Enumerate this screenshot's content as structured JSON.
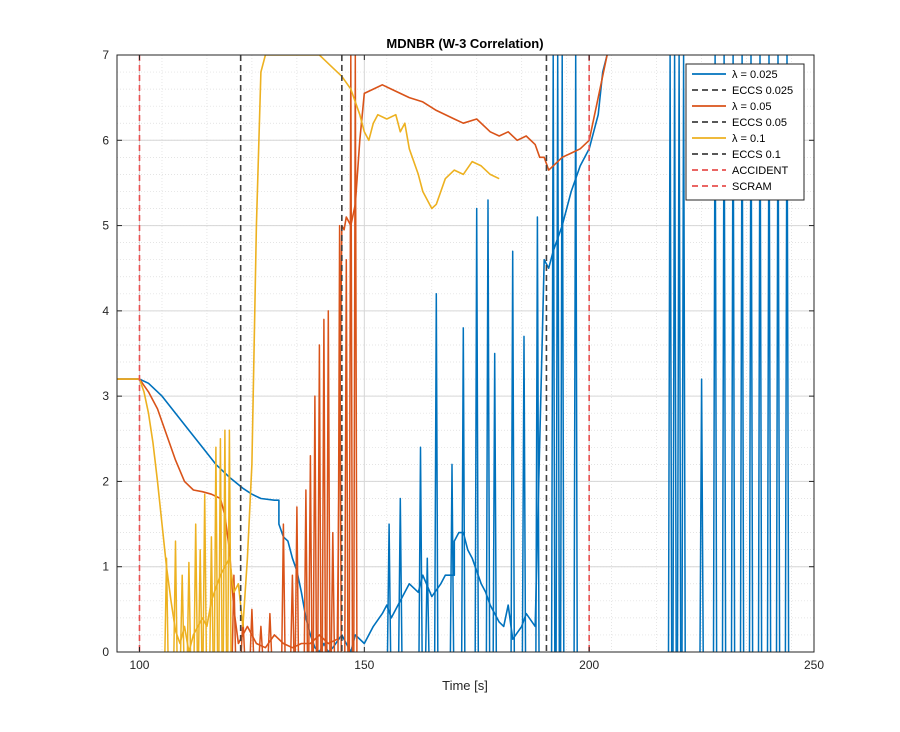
{
  "chart_data": {
    "type": "line",
    "title": "MDNBR (W-3 Correlation)",
    "xlabel": "Time [s]",
    "ylabel": "",
    "xlim": [
      95,
      250
    ],
    "ylim": [
      0,
      7
    ],
    "xticks": [
      100,
      150,
      200,
      250
    ],
    "yticks": [
      0,
      1,
      2,
      3,
      4,
      5,
      6,
      7
    ],
    "grid": "on (solid major, dotted minor)",
    "legend_position": "top-right",
    "series": [
      {
        "name": "λ = 0.025",
        "color": "#0072BD",
        "style": "solid",
        "points": [
          [
            95,
            3.2
          ],
          [
            100,
            3.2
          ],
          [
            102,
            3.15
          ],
          [
            105,
            3.0
          ],
          [
            108,
            2.8
          ],
          [
            111,
            2.6
          ],
          [
            114,
            2.4
          ],
          [
            117,
            2.2
          ],
          [
            120,
            2.05
          ],
          [
            123,
            1.92
          ],
          [
            125,
            1.85
          ],
          [
            127,
            1.8
          ],
          [
            130,
            1.78
          ],
          [
            131,
            1.78
          ],
          [
            131,
            1.5
          ],
          [
            132,
            1.35
          ],
          [
            133,
            1.3
          ],
          [
            134,
            1.1
          ],
          [
            135,
            0.95
          ],
          [
            136,
            0.7
          ],
          [
            137,
            0.4
          ],
          [
            138,
            0.2
          ],
          [
            139,
            0.05
          ],
          [
            140,
            0.0
          ],
          [
            141,
            0.1
          ],
          [
            142,
            0.0
          ],
          [
            143,
            0.05
          ],
          [
            145,
            0.2
          ],
          [
            146,
            0.1
          ],
          [
            147,
            0.0
          ],
          [
            148,
            0.2
          ],
          [
            150,
            0.1
          ],
          [
            152,
            0.3
          ],
          [
            154,
            0.45
          ],
          [
            155,
            0.55
          ],
          [
            156,
            0.4
          ],
          [
            158,
            0.6
          ],
          [
            160,
            0.8
          ],
          [
            162,
            0.7
          ],
          [
            163,
            0.9
          ],
          [
            165,
            0.65
          ],
          [
            167,
            0.8
          ],
          [
            168,
            0.9
          ],
          [
            170,
            0.9
          ],
          [
            170,
            1.3
          ],
          [
            171,
            1.4
          ],
          [
            172,
            1.4
          ],
          [
            173,
            1.2
          ],
          [
            174,
            1.1
          ],
          [
            175,
            0.95
          ],
          [
            176,
            0.8
          ],
          [
            177,
            0.7
          ],
          [
            178,
            0.55
          ],
          [
            180,
            0.35
          ],
          [
            181,
            0.3
          ],
          [
            182,
            0.55
          ],
          [
            183,
            0.15
          ],
          [
            185,
            0.3
          ],
          [
            186,
            0.45
          ],
          [
            188,
            0.3
          ],
          [
            190,
            4.6
          ],
          [
            191,
            4.5
          ],
          [
            192,
            4.7
          ],
          [
            194,
            5.0
          ],
          [
            196,
            5.4
          ],
          [
            198,
            5.7
          ],
          [
            200,
            5.9
          ],
          [
            202,
            6.3
          ],
          [
            203,
            6.8
          ],
          [
            204,
            7.0
          ]
        ],
        "spikes": [
          {
            "x": 155.5,
            "y": 1.5
          },
          {
            "x": 158,
            "y": 1.8
          },
          {
            "x": 162.5,
            "y": 2.4
          },
          {
            "x": 164,
            "y": 1.1
          },
          {
            "x": 166,
            "y": 4.2
          },
          {
            "x": 169.5,
            "y": 2.2
          },
          {
            "x": 172,
            "y": 3.8
          },
          {
            "x": 175,
            "y": 5.2
          },
          {
            "x": 177.5,
            "y": 5.3
          },
          {
            "x": 179,
            "y": 3.5
          },
          {
            "x": 183,
            "y": 4.7
          },
          {
            "x": 185.5,
            "y": 3.7
          },
          {
            "x": 188.5,
            "y": 5.1
          },
          {
            "x": 192,
            "y": 7.0
          },
          {
            "x": 193,
            "y": 7.0
          },
          {
            "x": 194,
            "y": 7.0
          },
          {
            "x": 197,
            "y": 7.0
          },
          {
            "x": 218,
            "y": 7.0
          },
          {
            "x": 219,
            "y": 7.0
          },
          {
            "x": 220,
            "y": 7.0
          },
          {
            "x": 221,
            "y": 7.0
          },
          {
            "x": 225,
            "y": 3.2
          },
          {
            "x": 228,
            "y": 7.0
          },
          {
            "x": 230,
            "y": 7.0
          },
          {
            "x": 232,
            "y": 7.0
          },
          {
            "x": 234,
            "y": 7.0
          },
          {
            "x": 236,
            "y": 7.0
          },
          {
            "x": 238,
            "y": 7.0
          },
          {
            "x": 240,
            "y": 7.0
          },
          {
            "x": 242,
            "y": 7.0
          },
          {
            "x": 244,
            "y": 7.0
          }
        ]
      },
      {
        "name": "ECCS 0.025",
        "color": "#404040",
        "style": "dashed",
        "x": 122.5
      },
      {
        "name": "λ = 0.05",
        "color": "#D95319",
        "style": "solid",
        "points": [
          [
            95,
            3.2
          ],
          [
            100,
            3.2
          ],
          [
            102,
            3.05
          ],
          [
            104,
            2.85
          ],
          [
            106,
            2.55
          ],
          [
            108,
            2.25
          ],
          [
            110,
            2.0
          ],
          [
            112,
            1.9
          ],
          [
            114,
            1.88
          ],
          [
            116,
            1.85
          ],
          [
            118,
            1.8
          ],
          [
            119,
            1.6
          ],
          [
            120,
            1.2
          ],
          [
            121,
            0.5
          ],
          [
            122,
            0.1
          ],
          [
            124,
            0.3
          ],
          [
            126,
            0.1
          ],
          [
            128,
            0.05
          ],
          [
            130,
            0.2
          ],
          [
            132,
            0.1
          ],
          [
            134,
            0.05
          ],
          [
            136,
            0.1
          ],
          [
            138,
            0.1
          ],
          [
            140,
            0.2
          ],
          [
            142,
            0.1
          ],
          [
            144,
            0.15
          ],
          [
            145,
            5.0
          ],
          [
            145.5,
            4.95
          ],
          [
            146,
            5.1
          ],
          [
            147,
            5.0
          ],
          [
            148,
            5.25
          ],
          [
            149,
            6.0
          ],
          [
            150,
            6.55
          ],
          [
            152,
            6.6
          ],
          [
            154,
            6.65
          ],
          [
            156,
            6.6
          ],
          [
            158,
            6.55
          ],
          [
            160,
            6.5
          ],
          [
            163,
            6.45
          ],
          [
            166,
            6.35
          ],
          [
            170,
            6.25
          ],
          [
            172,
            6.2
          ],
          [
            175,
            6.25
          ],
          [
            178,
            6.1
          ],
          [
            180,
            6.05
          ],
          [
            182,
            6.1
          ],
          [
            184,
            6.0
          ],
          [
            186,
            6.05
          ],
          [
            188,
            5.95
          ],
          [
            189,
            5.8
          ],
          [
            190,
            5.8
          ],
          [
            191,
            5.65
          ],
          [
            192,
            5.7
          ],
          [
            194,
            5.8
          ],
          [
            196,
            5.85
          ],
          [
            198,
            5.9
          ],
          [
            200,
            6.0
          ],
          [
            202,
            6.5
          ],
          [
            204,
            7.0
          ]
        ],
        "spikes": [
          {
            "x": 121,
            "y": 0.9
          },
          {
            "x": 123,
            "y": 0.4
          },
          {
            "x": 125,
            "y": 0.5
          },
          {
            "x": 127,
            "y": 0.3
          },
          {
            "x": 129,
            "y": 0.45
          },
          {
            "x": 132,
            "y": 1.5
          },
          {
            "x": 134,
            "y": 0.9
          },
          {
            "x": 135,
            "y": 1.7
          },
          {
            "x": 137,
            "y": 1.9
          },
          {
            "x": 138,
            "y": 2.3
          },
          {
            "x": 139,
            "y": 3.0
          },
          {
            "x": 140,
            "y": 3.6
          },
          {
            "x": 141,
            "y": 3.9
          },
          {
            "x": 142,
            "y": 4.0
          },
          {
            "x": 143,
            "y": 1.4
          },
          {
            "x": 144.5,
            "y": 5.0
          },
          {
            "x": 146,
            "y": 4.6
          },
          {
            "x": 147,
            "y": 7.0
          },
          {
            "x": 148,
            "y": 7.0
          }
        ]
      },
      {
        "name": "ECCS 0.05",
        "color": "#404040",
        "style": "dashed",
        "x": 145
      },
      {
        "name": "λ = 0.1",
        "color": "#EDB120",
        "style": "solid",
        "points": [
          [
            95,
            3.2
          ],
          [
            100,
            3.2
          ],
          [
            101,
            3.05
          ],
          [
            102,
            2.8
          ],
          [
            103,
            2.45
          ],
          [
            104,
            2.0
          ],
          [
            105,
            1.5
          ],
          [
            106,
            1.0
          ],
          [
            107,
            0.6
          ],
          [
            108,
            0.25
          ],
          [
            109,
            0.1
          ],
          [
            110,
            0.3
          ],
          [
            111,
            0.0
          ],
          [
            112,
            0.2
          ],
          [
            114,
            0.4
          ],
          [
            115,
            0.3
          ],
          [
            116,
            0.6
          ],
          [
            118,
            0.9
          ],
          [
            120,
            1.1
          ],
          [
            121,
            0.7
          ],
          [
            122,
            0.8
          ],
          [
            123,
            0.3
          ],
          [
            124,
            1.1
          ],
          [
            125,
            2.2
          ],
          [
            126,
            5.0
          ],
          [
            127,
            6.8
          ],
          [
            128,
            7.0
          ],
          [
            130,
            7.0
          ],
          [
            140,
            7.0
          ],
          [
            141,
            6.95
          ],
          [
            143,
            6.85
          ],
          [
            145,
            6.75
          ],
          [
            147,
            6.6
          ],
          [
            149,
            6.3
          ],
          [
            150,
            6.1
          ],
          [
            151,
            6.0
          ],
          [
            152,
            6.2
          ],
          [
            153,
            6.3
          ],
          [
            155,
            6.25
          ],
          [
            157,
            6.3
          ],
          [
            158,
            6.1
          ],
          [
            159,
            6.2
          ],
          [
            160,
            5.9
          ],
          [
            162,
            5.6
          ],
          [
            163,
            5.4
          ],
          [
            165,
            5.2
          ],
          [
            166,
            5.25
          ],
          [
            167,
            5.4
          ],
          [
            168,
            5.55
          ],
          [
            170,
            5.65
          ],
          [
            172,
            5.6
          ],
          [
            174,
            5.75
          ],
          [
            176,
            5.7
          ],
          [
            178,
            5.6
          ],
          [
            180,
            5.55
          ]
        ],
        "spikes": [
          {
            "x": 106,
            "y": 1.1
          },
          {
            "x": 108,
            "y": 1.3
          },
          {
            "x": 109.5,
            "y": 0.9
          },
          {
            "x": 111,
            "y": 1.05
          },
          {
            "x": 112.5,
            "y": 1.5
          },
          {
            "x": 113.5,
            "y": 1.2
          },
          {
            "x": 114.5,
            "y": 1.85
          },
          {
            "x": 116,
            "y": 1.35
          },
          {
            "x": 117,
            "y": 2.4
          },
          {
            "x": 118,
            "y": 2.5
          },
          {
            "x": 119,
            "y": 2.6
          },
          {
            "x": 120,
            "y": 2.6
          }
        ]
      },
      {
        "name": "ECCS 0.1",
        "color": "#404040",
        "style": "dashed",
        "x": 190.5
      },
      {
        "name": "ACCIDENT",
        "color": "#E8504F",
        "style": "dashed",
        "x": 100
      },
      {
        "name": "SCRAM",
        "color": "#E8504F",
        "style": "dashed",
        "x": 200
      }
    ]
  }
}
